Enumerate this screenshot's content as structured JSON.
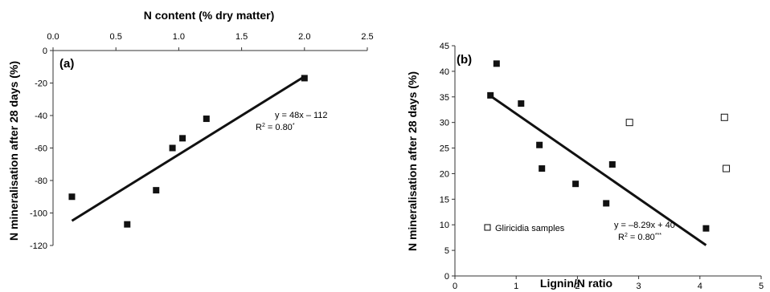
{
  "chart_data": [
    {
      "panel": "(a)",
      "type": "scatter",
      "title": "",
      "xlabel": "N content (% dry matter)",
      "ylabel": "N mineralisation after 28 days (%)",
      "xlim": [
        0,
        2.5
      ],
      "ylim": [
        -120,
        0
      ],
      "xticks": [
        "0.0",
        "0.5",
        "1.0",
        "1.5",
        "2.0",
        "2.5"
      ],
      "yticks": [
        "0",
        "-20",
        "-40",
        "-60",
        "-80",
        "-100",
        "-120"
      ],
      "x_axis_position": "top",
      "grid": false,
      "series": [
        {
          "marker": "filled-square",
          "points": [
            {
              "x": 0.15,
              "y": -90
            },
            {
              "x": 0.59,
              "y": -107
            },
            {
              "x": 0.82,
              "y": -86
            },
            {
              "x": 0.95,
              "y": -60
            },
            {
              "x": 1.03,
              "y": -54
            },
            {
              "x": 1.22,
              "y": -42
            },
            {
              "x": 2.0,
              "y": -17
            }
          ]
        }
      ],
      "trendline": {
        "x_range": [
          0.15,
          2.0
        ],
        "slope": 48,
        "intercept": -112
      },
      "annotation": {
        "equation": "y = 48x – 112",
        "r2_label": "R",
        "r2_sup": "2",
        "r2_value": " = 0.80",
        "r2_sig": "*"
      }
    },
    {
      "panel": "(b)",
      "type": "scatter",
      "title": "",
      "xlabel": "Lignin/N ratio",
      "ylabel": "N mineralisation after 28 days (%)",
      "xlim": [
        0,
        5
      ],
      "ylim": [
        0,
        45
      ],
      "xticks": [
        "0",
        "1",
        "2",
        "3",
        "4",
        "5"
      ],
      "yticks": [
        "0",
        "5",
        "10",
        "15",
        "20",
        "25",
        "30",
        "35",
        "40",
        "45"
      ],
      "grid": false,
      "series": [
        {
          "marker": "filled-square",
          "points": [
            {
              "x": 0.58,
              "y": 35.3
            },
            {
              "x": 0.68,
              "y": 41.5
            },
            {
              "x": 1.08,
              "y": 33.7
            },
            {
              "x": 1.38,
              "y": 25.6
            },
            {
              "x": 1.42,
              "y": 21.0
            },
            {
              "x": 1.97,
              "y": 18.0
            },
            {
              "x": 2.47,
              "y": 14.2
            },
            {
              "x": 2.57,
              "y": 21.8
            },
            {
              "x": 4.1,
              "y": 9.3
            }
          ]
        },
        {
          "name": "Gliricidia samples",
          "marker": "open-square",
          "points": [
            {
              "x": 2.85,
              "y": 30.0
            },
            {
              "x": 4.4,
              "y": 31.0
            },
            {
              "x": 4.43,
              "y": 21.0
            }
          ]
        }
      ],
      "trendline": {
        "x_range": [
          0.55,
          4.1
        ],
        "slope": -8.29,
        "intercept": 40
      },
      "annotation": {
        "equation": "y = –8.29x + 40",
        "r2_label": "R",
        "r2_sup": "2",
        "r2_value": " = 0.80",
        "r2_sig": "***"
      },
      "legend": {
        "label": "Gliricidia samples",
        "placement": "bottom-left"
      }
    }
  ]
}
